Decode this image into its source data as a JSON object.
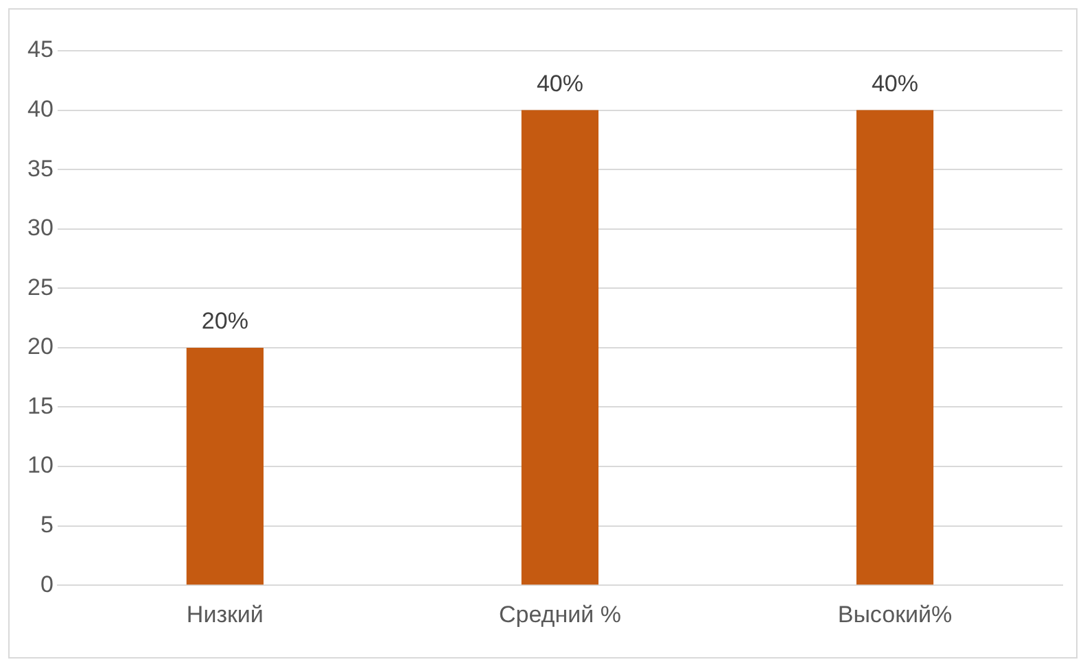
{
  "chart_data": {
    "type": "bar",
    "categories": [
      "Низкий",
      "Средний %",
      "Высокий%"
    ],
    "values": [
      20,
      40,
      40
    ],
    "value_labels": [
      "20%",
      "40%",
      "40%"
    ],
    "color": "#c55a11",
    "ylim": [
      0,
      45
    ],
    "yticks": [
      0,
      5,
      10,
      15,
      20,
      25,
      30,
      35,
      40,
      45
    ],
    "grid": "y",
    "legend": false
  }
}
